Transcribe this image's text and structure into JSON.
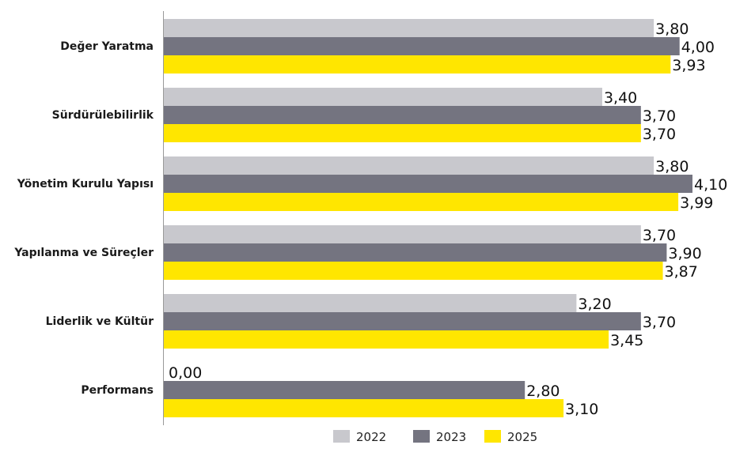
{
  "chart_data": {
    "type": "bar",
    "orientation": "horizontal",
    "categories": [
      "Değer Yaratma",
      "Sürdürülebilirlik",
      "Yönetim Kurulu Yapısı",
      "Yapılanma ve Süreçler",
      "Liderlik ve Kültür",
      "Performans"
    ],
    "series": [
      {
        "name": "2022",
        "color": "#c8c8cd",
        "values": [
          3.8,
          3.4,
          3.8,
          3.7,
          3.2,
          0.0
        ],
        "labels": [
          "3,80",
          "3,40",
          "3,80",
          "3,70",
          "3,20",
          "0,00"
        ]
      },
      {
        "name": "2023",
        "color": "#747480",
        "values": [
          4.0,
          3.7,
          4.1,
          3.9,
          3.7,
          2.8
        ],
        "labels": [
          "4,00",
          "3,70",
          "4,10",
          "3,90",
          "3,70",
          "2,80"
        ]
      },
      {
        "name": "2025",
        "color": "#ffe600",
        "values": [
          3.93,
          3.7,
          3.99,
          3.87,
          3.45,
          3.1
        ],
        "labels": [
          "3,93",
          "3,70",
          "3,99",
          "3,87",
          "3,45",
          "3,10"
        ]
      }
    ],
    "xlim": [
      0,
      4.1
    ],
    "grid": false,
    "legend_position": "bottom",
    "title": "",
    "xlabel": "",
    "ylabel": ""
  }
}
